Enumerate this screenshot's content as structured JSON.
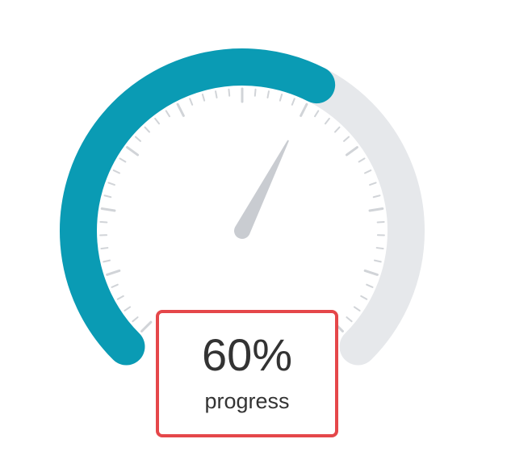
{
  "chart_data": {
    "type": "gauge",
    "value": 60,
    "min": 0,
    "max": 100,
    "detail_value": "60%",
    "detail_label": "progress",
    "progress_color": "#0a9bb4",
    "track_color": "#e6e8eb",
    "pointer_color": "#c9ccd1",
    "tick_color": "#d1d4d8",
    "major_ticks": 10,
    "minor_ticks_per_segment": 5,
    "detail_border_color": "#e5474a"
  }
}
